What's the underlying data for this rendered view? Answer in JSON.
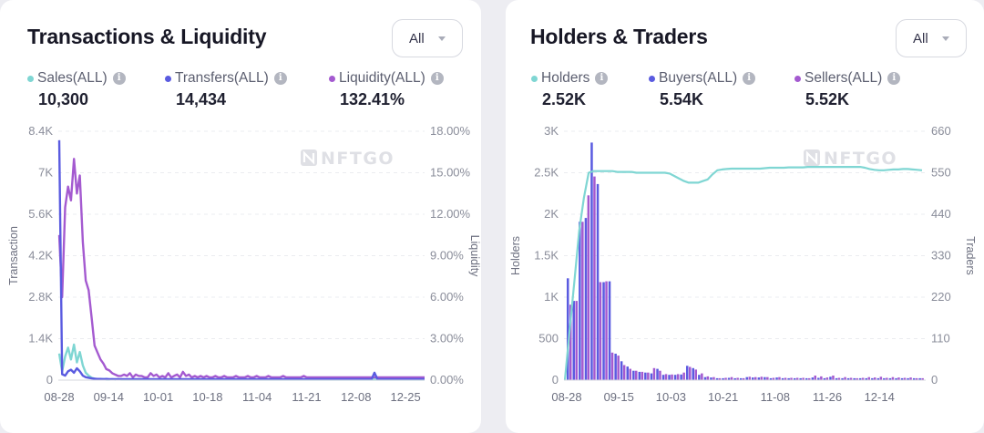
{
  "left": {
    "title": "Transactions & Liquidity",
    "dropdown": "All",
    "legend": [
      {
        "name": "Sales(ALL)",
        "value": "10,300",
        "color": "#7fd6d3"
      },
      {
        "name": "Transfers(ALL)",
        "value": "14,434",
        "color": "#5a5be0"
      },
      {
        "name": "Liquidity(ALL)",
        "value": "132.41%",
        "color": "#a45ad0"
      }
    ],
    "info_glyph": "i",
    "watermark": "NFTGO"
  },
  "right": {
    "title": "Holders & Traders",
    "dropdown": "All",
    "legend": [
      {
        "name": "Holders",
        "value": "2.52K",
        "color": "#7fd6d3"
      },
      {
        "name": "Buyers(ALL)",
        "value": "5.54K",
        "color": "#5a5be0"
      },
      {
        "name": "Sellers(ALL)",
        "value": "5.52K",
        "color": "#a45ad0"
      }
    ],
    "info_glyph": "i",
    "watermark": "NFTGO"
  },
  "chart_data": [
    {
      "type": "line",
      "x_ticks": [
        "08-28",
        "09-14",
        "10-01",
        "10-18",
        "11-04",
        "11-21",
        "12-08",
        "12-25"
      ],
      "ylabel": "Transaction",
      "y2label": "Liquidity",
      "ylim": [
        0,
        8400
      ],
      "y_ticks": [
        "0",
        "1.4K",
        "2.8K",
        "4.2K",
        "5.6K",
        "7K",
        "8.4K"
      ],
      "y2lim": [
        0,
        18
      ],
      "y2_ticks": [
        "0.00%",
        "3.00%",
        "6.00%",
        "9.00%",
        "12.00%",
        "15.00%",
        "18.00%"
      ],
      "grid": true,
      "series": [
        {
          "name": "Sales(ALL)",
          "axis": "left",
          "color": "#7fd6d3",
          "values": [
            900,
            300,
            800,
            1100,
            700,
            1200,
            600,
            950,
            500,
            250,
            150,
            80,
            50,
            30,
            30,
            40,
            20,
            20,
            30,
            20,
            30,
            20,
            20,
            20,
            20,
            20,
            20,
            20,
            20,
            20,
            20,
            20,
            20,
            20,
            20,
            20,
            20,
            20,
            20,
            20,
            20,
            20,
            20,
            20,
            20,
            20,
            20,
            20,
            20,
            20,
            20,
            20,
            20,
            20,
            20,
            20,
            20,
            20,
            20,
            20,
            20,
            20,
            20,
            20,
            20,
            20,
            20,
            20,
            20,
            20,
            20,
            20,
            20,
            20,
            20,
            20,
            20,
            20,
            20,
            20,
            20,
            20,
            20,
            20,
            20,
            20,
            20,
            20,
            20,
            20,
            20,
            20,
            20,
            20,
            20,
            20,
            20,
            20,
            20,
            20,
            20,
            20,
            20,
            20,
            20,
            20,
            20,
            20,
            20,
            20,
            20,
            20,
            20,
            20,
            20,
            20,
            20,
            20,
            20,
            20,
            20,
            20,
            20,
            20,
            20
          ]
        },
        {
          "name": "Transfers(ALL)",
          "axis": "left",
          "color": "#5a5be0",
          "values": [
            8100,
            200,
            150,
            300,
            350,
            250,
            400,
            300,
            150,
            100,
            80,
            60,
            50,
            40,
            40,
            30,
            40,
            30,
            30,
            30,
            30,
            30,
            30,
            30,
            30,
            30,
            30,
            30,
            30,
            30,
            30,
            30,
            30,
            30,
            30,
            30,
            30,
            30,
            30,
            30,
            30,
            30,
            30,
            30,
            30,
            30,
            30,
            30,
            30,
            30,
            30,
            30,
            30,
            30,
            30,
            30,
            30,
            30,
            30,
            30,
            30,
            30,
            30,
            30,
            30,
            30,
            30,
            30,
            30,
            30,
            30,
            30,
            30,
            30,
            30,
            30,
            30,
            30,
            30,
            30,
            30,
            30,
            30,
            30,
            30,
            30,
            30,
            30,
            30,
            30,
            30,
            30,
            30,
            30,
            30,
            30,
            30,
            30,
            30,
            30,
            30,
            30,
            30,
            30,
            30,
            30,
            30,
            250,
            30,
            30,
            30,
            30,
            30,
            30,
            30,
            30,
            30,
            30,
            30,
            30,
            30,
            30,
            30,
            30,
            30
          ]
        },
        {
          "name": "Liquidity(ALL)",
          "axis": "right",
          "color": "#a45ad0",
          "values": [
            10.5,
            6.0,
            12.5,
            14.0,
            13.0,
            16.0,
            13.5,
            14.8,
            10.0,
            7.2,
            6.5,
            4.5,
            2.5,
            2.0,
            1.5,
            1.2,
            0.8,
            0.7,
            0.5,
            0.4,
            0.3,
            0.3,
            0.4,
            0.3,
            0.5,
            0.2,
            0.4,
            0.3,
            0.3,
            0.2,
            0.2,
            0.5,
            0.3,
            0.4,
            0.2,
            0.3,
            0.2,
            0.5,
            0.2,
            0.3,
            0.4,
            0.2,
            0.6,
            0.3,
            0.4,
            0.2,
            0.3,
            0.2,
            0.3,
            0.2,
            0.3,
            0.2,
            0.2,
            0.3,
            0.2,
            0.2,
            0.3,
            0.2,
            0.2,
            0.2,
            0.3,
            0.2,
            0.2,
            0.2,
            0.3,
            0.2,
            0.2,
            0.3,
            0.2,
            0.2,
            0.2,
            0.3,
            0.2,
            0.2,
            0.2,
            0.2,
            0.3,
            0.2,
            0.2,
            0.2,
            0.2,
            0.2,
            0.2,
            0.3,
            0.2,
            0.2,
            0.2,
            0.2,
            0.2,
            0.2,
            0.2,
            0.2,
            0.2,
            0.2,
            0.2,
            0.2,
            0.2,
            0.2,
            0.2,
            0.2,
            0.2,
            0.2,
            0.2,
            0.2,
            0.2,
            0.2,
            0.2,
            0.2,
            0.2,
            0.2,
            0.2,
            0.2,
            0.2,
            0.2,
            0.2,
            0.2,
            0.2,
            0.2,
            0.2,
            0.2,
            0.2,
            0.2,
            0.2,
            0.2,
            0.2
          ]
        }
      ]
    },
    {
      "type": "bar",
      "x_ticks": [
        "08-28",
        "09-15",
        "10-03",
        "10-21",
        "11-08",
        "11-26",
        "12-14"
      ],
      "ylabel": "Holders",
      "y2label": "Traders",
      "ylim": [
        0,
        3000
      ],
      "y_ticks": [
        "0",
        "500",
        "1K",
        "1.5K",
        "2K",
        "2.5K",
        "3K"
      ],
      "y2lim": [
        0,
        660
      ],
      "y2_ticks": [
        "0",
        "110",
        "220",
        "330",
        "440",
        "550",
        "660"
      ],
      "grid": true,
      "series": [
        {
          "name": "Holders",
          "axis": "left",
          "type": "line",
          "color": "#7fd6d3",
          "values": [
            0,
            600,
            1200,
            1800,
            2200,
            2500,
            2520,
            2520,
            2520,
            2520,
            2520,
            2510,
            2510,
            2510,
            2510,
            2500,
            2500,
            2500,
            2500,
            2500,
            2500,
            2500,
            2490,
            2460,
            2430,
            2400,
            2380,
            2380,
            2380,
            2400,
            2420,
            2480,
            2530,
            2540,
            2545,
            2550,
            2550,
            2550,
            2550,
            2550,
            2550,
            2550,
            2555,
            2560,
            2560,
            2560,
            2560,
            2565,
            2565,
            2565,
            2565,
            2570,
            2570,
            2570,
            2570,
            2570,
            2570,
            2570,
            2570,
            2570,
            2570,
            2570,
            2570,
            2560,
            2545,
            2535,
            2530,
            2530,
            2535,
            2540,
            2540,
            2545,
            2545,
            2540,
            2535,
            2530
          ]
        },
        {
          "name": "Buyers(ALL)",
          "axis": "right",
          "type": "bar",
          "color": "#5a5be0",
          "values": [
            270,
            210,
            420,
            430,
            630,
            520,
            260,
            262,
            70,
            50,
            36,
            25,
            22,
            20,
            18,
            30,
            14,
            14,
            14,
            15,
            38,
            32,
            14,
            8,
            7,
            5,
            5,
            6,
            5,
            5,
            8,
            7,
            7,
            8,
            5,
            7,
            5,
            5,
            5,
            5,
            5,
            7,
            6,
            5,
            9,
            5,
            5,
            5,
            5,
            5,
            5,
            5,
            5,
            5,
            5,
            5,
            5,
            5,
            5,
            5
          ]
        },
        {
          "name": "Sellers(ALL)",
          "axis": "right",
          "type": "bar",
          "color": "#a45ad0",
          "values": [
            200,
            210,
            420,
            490,
            540,
            260,
            262,
            73,
            65,
            40,
            30,
            25,
            22,
            20,
            32,
            25,
            16,
            15,
            16,
            20,
            35,
            28,
            18,
            10,
            8,
            5,
            6,
            8,
            6,
            5,
            9,
            8,
            9,
            8,
            6,
            8,
            6,
            6,
            6,
            6,
            5,
            12,
            10,
            7,
            12,
            6,
            8,
            6,
            5,
            6,
            8,
            7,
            9,
            6,
            8,
            7,
            6,
            7,
            5,
            5
          ]
        }
      ]
    }
  ]
}
